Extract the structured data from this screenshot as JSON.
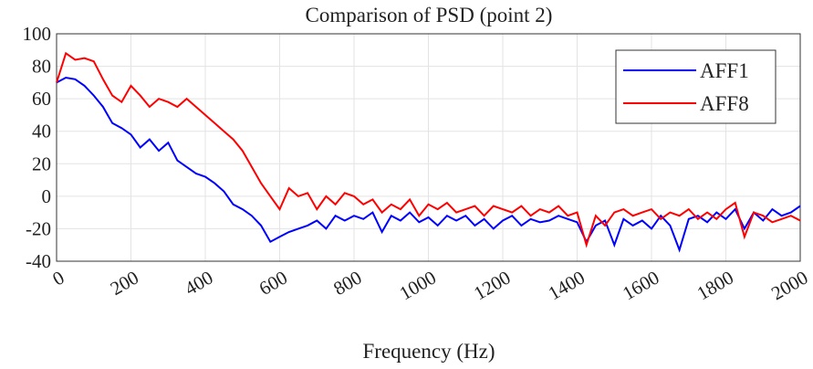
{
  "chart_data": {
    "type": "line",
    "title": "Comparison of PSD (point 2)",
    "x_label": "Frequency (Hz)",
    "x": [
      0,
      25,
      50,
      75,
      100,
      125,
      150,
      175,
      200,
      225,
      250,
      275,
      300,
      325,
      350,
      375,
      400,
      425,
      450,
      475,
      500,
      525,
      550,
      575,
      600,
      625,
      650,
      675,
      700,
      725,
      750,
      775,
      800,
      825,
      850,
      875,
      900,
      925,
      950,
      975,
      1000,
      1025,
      1050,
      1075,
      1100,
      1125,
      1150,
      1175,
      1200,
      1225,
      1250,
      1275,
      1300,
      1325,
      1350,
      1375,
      1400,
      1425,
      1450,
      1475,
      1500,
      1525,
      1550,
      1575,
      1600,
      1625,
      1650,
      1675,
      1700,
      1725,
      1750,
      1775,
      1800,
      1825,
      1850,
      1875,
      1900,
      1925,
      1950,
      1975,
      2000
    ],
    "series": [
      {
        "name": "AFF1",
        "color": "#0000ff",
        "values": [
          70,
          73,
          72,
          68,
          62,
          55,
          45,
          42,
          38,
          30,
          35,
          28,
          33,
          22,
          18,
          14,
          12,
          8,
          3,
          -5,
          -8,
          -12,
          -18,
          -28,
          -25,
          -22,
          -20,
          -18,
          -15,
          -20,
          -12,
          -15,
          -12,
          -14,
          -10,
          -22,
          -12,
          -15,
          -10,
          -16,
          -13,
          -18,
          -12,
          -15,
          -12,
          -18,
          -14,
          -20,
          -15,
          -12,
          -18,
          -14,
          -16,
          -15,
          -12,
          -14,
          -16,
          -28,
          -18,
          -15,
          -30,
          -14,
          -18,
          -15,
          -20,
          -12,
          -18,
          -33,
          -14,
          -12,
          -16,
          -10,
          -14,
          -8,
          -20,
          -10,
          -15,
          -8,
          -12,
          -10,
          -6
        ]
      },
      {
        "name": "AFF8",
        "color": "#ff0000",
        "values": [
          70,
          88,
          84,
          85,
          83,
          72,
          62,
          58,
          68,
          62,
          55,
          60,
          58,
          55,
          60,
          55,
          50,
          45,
          40,
          35,
          28,
          18,
          8,
          0,
          -8,
          5,
          0,
          2,
          -8,
          0,
          -5,
          2,
          0,
          -5,
          -2,
          -10,
          -5,
          -8,
          -2,
          -12,
          -5,
          -8,
          -4,
          -10,
          -8,
          -6,
          -12,
          -6,
          -8,
          -10,
          -6,
          -12,
          -8,
          -10,
          -6,
          -12,
          -10,
          -30,
          -12,
          -18,
          -10,
          -8,
          -12,
          -10,
          -8,
          -14,
          -10,
          -12,
          -8,
          -14,
          -10,
          -14,
          -8,
          -4,
          -25,
          -10,
          -12,
          -16,
          -14,
          -12,
          -15
        ]
      }
    ],
    "xlim": [
      0,
      2000
    ],
    "xticks": [
      0,
      200,
      400,
      600,
      800,
      1000,
      1200,
      1400,
      1600,
      1800,
      2000
    ],
    "ylim": [
      -40,
      100
    ],
    "yticks": [
      -40,
      -20,
      0,
      20,
      40,
      60,
      80,
      100
    ],
    "grid": true,
    "legend": "upper right"
  }
}
